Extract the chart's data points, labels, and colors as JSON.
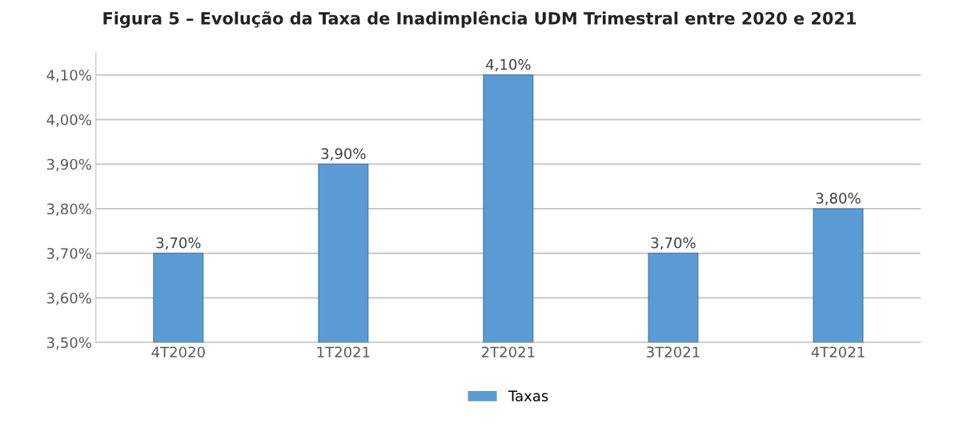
{
  "chart_data": {
    "type": "bar",
    "title": "Figura 5 – Evolução da Taxa de Inadimplência UDM Trimestral entre 2020 e 2021",
    "categories": [
      "4T2020",
      "1T2021",
      "2T2021",
      "3T2021",
      "4T2021"
    ],
    "series": [
      {
        "name": "Taxas",
        "color": "#5b9bd5",
        "values": [
          3.7,
          3.9,
          4.1,
          3.7,
          3.8
        ],
        "value_labels": [
          "3,70%",
          "3,90%",
          "4,10%",
          "3,70%",
          "3,80%"
        ]
      }
    ],
    "ylim": [
      3.5,
      4.15
    ],
    "yticks": [
      {
        "value": 3.5,
        "label": "3,50%"
      },
      {
        "value": 3.6,
        "label": "3,60%"
      },
      {
        "value": 3.7,
        "label": "3,70%"
      },
      {
        "value": 3.8,
        "label": "3,80%"
      },
      {
        "value": 3.9,
        "label": "3,90%"
      },
      {
        "value": 4.0,
        "label": "4,00%"
      },
      {
        "value": 4.1,
        "label": "4,10%"
      }
    ],
    "grid": "y",
    "legend": "bottom"
  }
}
